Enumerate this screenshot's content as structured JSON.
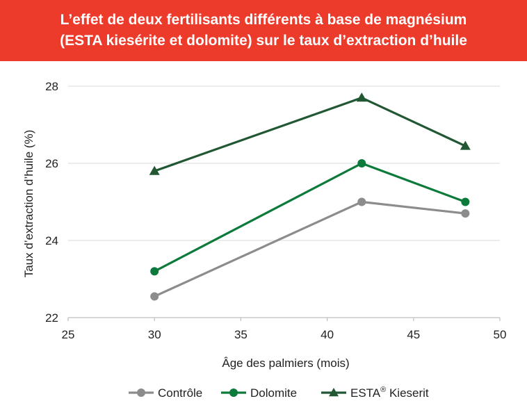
{
  "title_line1": "L’effet de deux fertilisants différents à base de magnésium",
  "title_line2": "(ESTA kiesérite et dolomite) sur le taux d’extraction d’huile",
  "colors": {
    "banner": "#ec3a2b",
    "grid": "#d9d9d9",
    "axis": "#bfbfbf"
  },
  "chart_data": {
    "type": "line",
    "xlabel": "Âge des palmiers (mois)",
    "ylabel": "Taux d’extraction d’huile (%)",
    "xlim": [
      25,
      50
    ],
    "ylim": [
      22,
      28
    ],
    "xticks": [
      25,
      30,
      35,
      40,
      45,
      50
    ],
    "yticks": [
      22,
      24,
      26,
      28
    ],
    "grid": "horizontal",
    "legend_position": "bottom",
    "x": [
      30,
      42,
      48
    ],
    "series": [
      {
        "name": "Contrôle",
        "values": [
          22.55,
          25.0,
          24.7
        ],
        "color": "#8c8c8c",
        "marker": "circle"
      },
      {
        "name": "Dolomite",
        "values": [
          23.2,
          26.0,
          25.0
        ],
        "color": "#0b7a3a",
        "marker": "circle"
      },
      {
        "name": "ESTA® Kieserit",
        "values": [
          25.8,
          27.7,
          26.45
        ],
        "color": "#215732",
        "marker": "triangle"
      }
    ]
  }
}
